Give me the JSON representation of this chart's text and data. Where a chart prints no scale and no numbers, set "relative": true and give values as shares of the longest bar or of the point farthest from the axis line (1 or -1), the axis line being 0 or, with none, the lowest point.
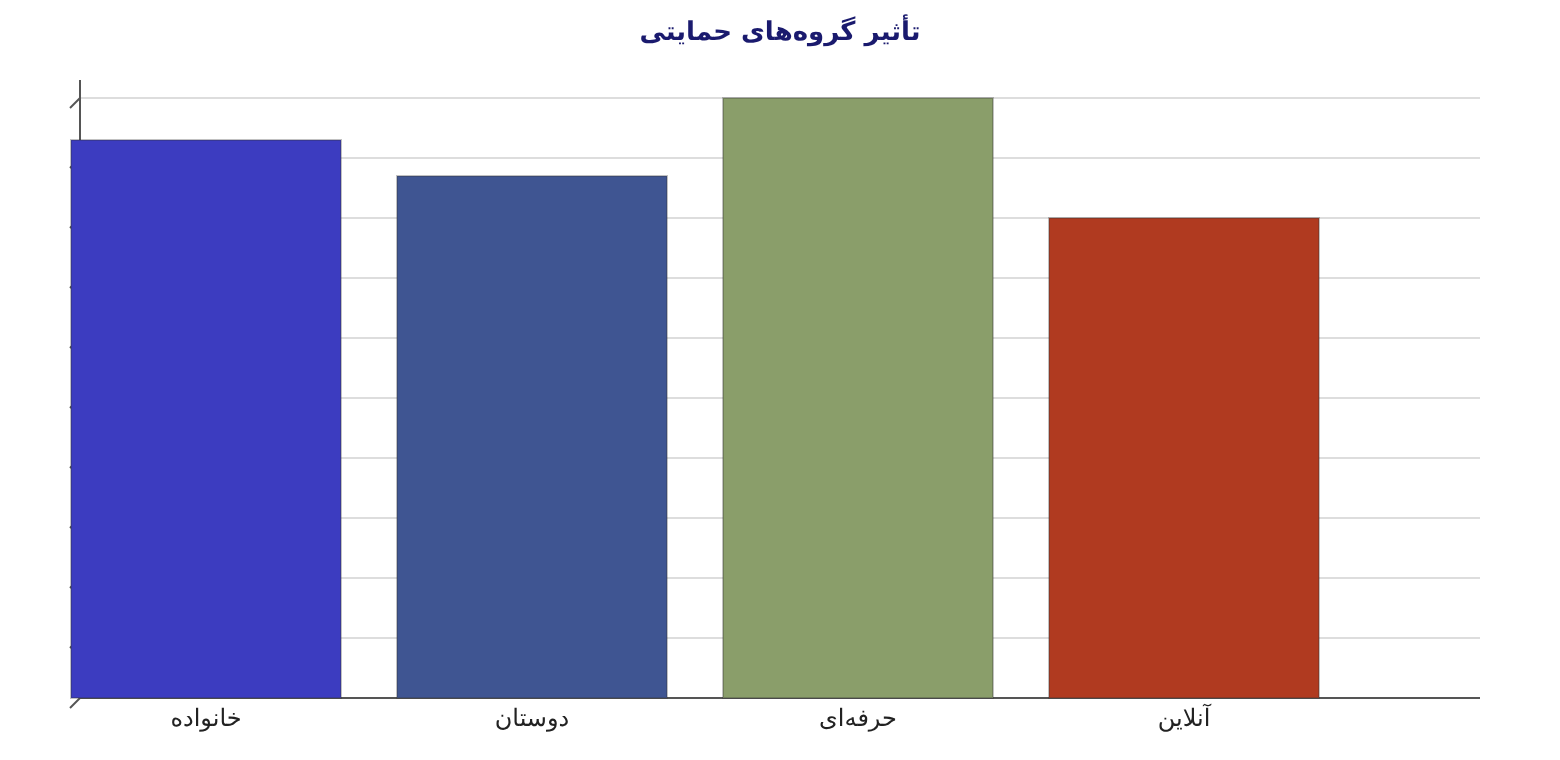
{
  "chart_data": {
    "type": "bar",
    "title": "تأثیر گروه‌های حمایتی",
    "categories": [
      "خانواده",
      "دوستان",
      "حرفه‌ای",
      "آنلاین"
    ],
    "values": [
      0.93,
      0.87,
      1,
      0.8
    ],
    "colors": [
      "#3c3cc0",
      "#3f5592",
      "#8a9e6a",
      "#b03a20"
    ],
    "relative": true,
    "grid": "y"
  }
}
